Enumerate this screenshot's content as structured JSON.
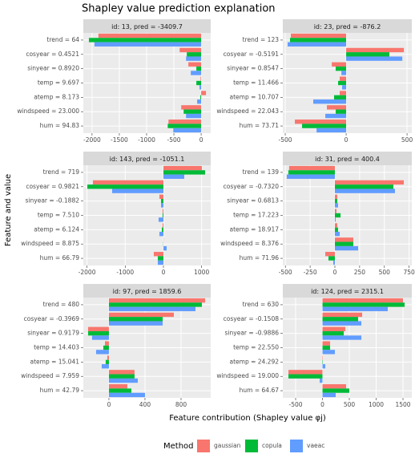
{
  "title": "Shapley value prediction explanation",
  "ylabel": "Feature and value",
  "xlabel": "Feature contribution (Shapley value φj)",
  "legend_title": "Method",
  "chart_data": [
    {
      "type": "bar",
      "orientation": "horizontal",
      "title": "id: 13, pred = -3409.7",
      "categories": [
        "trend = 64",
        "cosyear = 0.4521",
        "sinyear = 0.8920",
        "temp = 9.697",
        "atemp = 8.173",
        "windspeed = 23.000",
        "hum = 94.83"
      ],
      "series": [
        {
          "name": "gaussian",
          "color": "#F8766D",
          "values": [
            -1883,
            -394,
            -234,
            -10,
            88,
            -365,
            -599
          ]
        },
        {
          "name": "copula",
          "color": "#00BA38",
          "values": [
            -2058,
            -263,
            -88,
            -88,
            -15,
            -321,
            -613
          ]
        },
        {
          "name": "vaeac",
          "color": "#619CFF",
          "values": [
            -1956,
            -277,
            -190,
            -30,
            -73,
            -277,
            -511
          ]
        }
      ],
      "xlim": [
        -2160,
        175
      ],
      "xticks": [
        -2000,
        -1500,
        -1000,
        -500,
        0
      ],
      "grid": true
    },
    {
      "type": "bar",
      "orientation": "horizontal",
      "title": "id: 23, pred =  -876.2",
      "categories": [
        "trend = 123",
        "cosyear = -0.5191",
        "sinyear = 0.8547",
        "temp = 11.466",
        "atemp = 10.707",
        "windspeed = 22.043",
        "hum = 73.71"
      ],
      "series": [
        {
          "name": "gaussian",
          "color": "#F8766D",
          "values": [
            -454,
            474,
            -118,
            -53,
            -53,
            -158,
            -421
          ]
        },
        {
          "name": "copula",
          "color": "#00BA38",
          "values": [
            -461,
            355,
            -86,
            -66,
            -99,
            -86,
            -362
          ]
        },
        {
          "name": "vaeac",
          "color": "#619CFF",
          "values": [
            -480,
            461,
            -39,
            -33,
            -270,
            -171,
            -243
          ]
        }
      ],
      "xlim": [
        -520,
        539
      ],
      "xticks": [
        -500,
        0,
        500
      ],
      "grid": true
    },
    {
      "type": "bar",
      "orientation": "horizontal",
      "title": "id: 143, pred = -1051.1",
      "categories": [
        "trend = 719",
        "cosyear = 0.9821",
        "sinyear = -0.1882",
        "temp = 7.510",
        "atemp = 6.124",
        "windspeed = 8.875",
        "hum = 66.79"
      ],
      "series": [
        {
          "name": "gaussian",
          "color": "#F8766D",
          "values": [
            1006,
            -1845,
            -105,
            -21,
            -21,
            5,
            -252
          ]
        },
        {
          "name": "copula",
          "color": "#00BA38",
          "values": [
            1090,
            -1992,
            -63,
            -21,
            -42,
            -5,
            -147
          ]
        },
        {
          "name": "vaeac",
          "color": "#619CFF",
          "values": [
            545,
            -1342,
            -63,
            -126,
            -105,
            84,
            -147
          ]
        }
      ],
      "xlim": [
        -2096,
        1237
      ],
      "xticks": [
        -2000,
        -1000,
        0,
        1000
      ],
      "grid": true
    },
    {
      "type": "bar",
      "orientation": "horizontal",
      "title": "id: 31, pred =  400.4",
      "categories": [
        "trend = 139",
        "cosyear = -0.7320",
        "sinyear = 0.6813",
        "temp = 17.223",
        "atemp = 18.917",
        "windspeed = 8.376",
        "hum = 71.96"
      ],
      "series": [
        {
          "name": "gaussian",
          "color": "#F8766D",
          "values": [
            -462,
            696,
            24,
            16,
            24,
            186,
            -97
          ]
        },
        {
          "name": "copula",
          "color": "#00BA38",
          "values": [
            -470,
            591,
            24,
            57,
            32,
            186,
            -65
          ]
        },
        {
          "name": "vaeac",
          "color": "#619CFF",
          "values": [
            -486,
            607,
            32,
            8,
            49,
            235,
            -16
          ]
        }
      ],
      "xlim": [
        -526,
        777
      ],
      "xticks": [
        -500,
        -250,
        0,
        250,
        500,
        750
      ],
      "grid": true
    },
    {
      "type": "bar",
      "orientation": "horizontal",
      "title": "id: 97, pred =  1859.6",
      "categories": [
        "trend = 480",
        "cosyear = -0.3969",
        "sinyear = 0.9179",
        "temp = 14.403",
        "atemp = 15.041",
        "windspeed = 7.959",
        "hum = 42.79"
      ],
      "series": [
        {
          "name": "gaussian",
          "color": "#F8766D",
          "values": [
            1067,
            720,
            -231,
            -44,
            -18,
            284,
            204
          ]
        },
        {
          "name": "copula",
          "color": "#00BA38",
          "values": [
            1031,
            596,
            -231,
            -62,
            -36,
            284,
            249
          ]
        },
        {
          "name": "vaeac",
          "color": "#619CFF",
          "values": [
            960,
            596,
            -187,
            -142,
            -80,
            320,
            400
          ]
        }
      ],
      "xlim": [
        -284,
        1129
      ],
      "xticks": [
        0,
        400,
        800
      ],
      "grid": true
    },
    {
      "type": "bar",
      "orientation": "horizontal",
      "title": "id: 124, pred =  2315.1",
      "categories": [
        "trend = 630",
        "cosyear = -0.1508",
        "sinyear = -0.9886",
        "temp = 22.550",
        "atemp = 24.292",
        "windspeed = 19.000",
        "hum = 64.67"
      ],
      "series": [
        {
          "name": "gaussian",
          "color": "#F8766D",
          "values": [
            1500,
            739,
            425,
            142,
            7,
            -634,
            440
          ]
        },
        {
          "name": "copula",
          "color": "#00BA38",
          "values": [
            1530,
            664,
            396,
            142,
            7,
            -634,
            500
          ]
        },
        {
          "name": "vaeac",
          "color": "#619CFF",
          "values": [
            1216,
            724,
            724,
            231,
            52,
            -52,
            246
          ]
        }
      ],
      "xlim": [
        -739,
        1664
      ],
      "xticks": [
        -500,
        0,
        500,
        1000,
        1500
      ],
      "grid": true
    }
  ]
}
